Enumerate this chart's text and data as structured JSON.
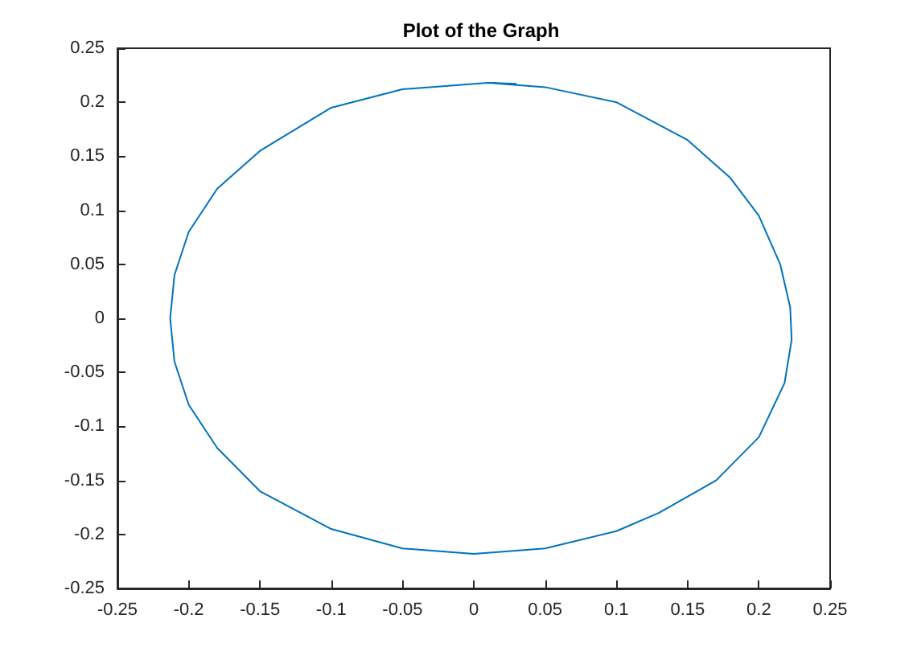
{
  "chart_data": {
    "type": "line",
    "title": "Plot of the Graph",
    "series": [
      {
        "color": "#0072bd",
        "x": [
          0.01,
          0.05,
          0.1,
          0.15,
          0.18,
          0.2,
          0.215,
          0.222,
          0.223,
          0.218,
          0.2,
          0.17,
          0.13,
          0.1,
          0.05,
          0.0,
          -0.05,
          -0.1,
          -0.15,
          -0.18,
          -0.2,
          -0.21,
          -0.213,
          -0.21,
          -0.2,
          -0.18,
          -0.15,
          -0.1,
          -0.05,
          0.01,
          0.03
        ],
        "values": [
          0.218,
          0.214,
          0.2,
          0.165,
          0.13,
          0.095,
          0.05,
          0.01,
          -0.02,
          -0.06,
          -0.11,
          -0.15,
          -0.18,
          -0.197,
          -0.213,
          -0.218,
          -0.213,
          -0.195,
          -0.16,
          -0.12,
          -0.08,
          -0.04,
          0.0,
          0.04,
          0.08,
          0.12,
          0.155,
          0.195,
          0.212,
          0.218,
          0.217
        ]
      }
    ],
    "xlim": [
      -0.25,
      0.25
    ],
    "xticks": [
      -0.25,
      -0.2,
      -0.15,
      -0.1,
      -0.05,
      0,
      0.05,
      0.1,
      0.15,
      0.2,
      0.25
    ],
    "ylim": [
      -0.25,
      0.25
    ],
    "yticks": [
      -0.25,
      -0.2,
      -0.15,
      -0.1,
      -0.05,
      0,
      0.05,
      0.1,
      0.15,
      0.2,
      0.25
    ],
    "grid": false,
    "marker": "none",
    "line_style": "solid"
  }
}
